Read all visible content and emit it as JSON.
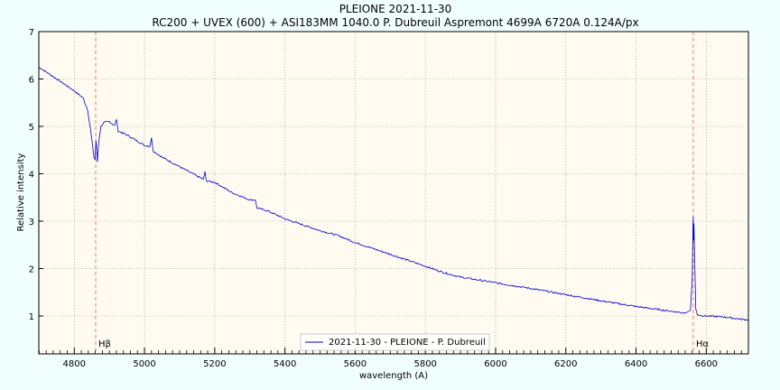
{
  "chart_data": {
    "type": "line",
    "title": "PLEIONE 2021-11-30",
    "subtitle": "RC200 + UVEX (600) + ASI183MM 1040.0 P. Dubreuil Aspremont 4699A 6720A 0.124A/px",
    "xlabel": "wavelength (A)",
    "ylabel": "Relative intensity",
    "xlim": [
      4699,
      6720
    ],
    "ylim": [
      0.2,
      7
    ],
    "xticks": [
      4800,
      5000,
      5200,
      5400,
      5600,
      5800,
      6000,
      6200,
      6400,
      6600
    ],
    "yticks": [
      1,
      2,
      3,
      4,
      5,
      6,
      7
    ],
    "grid": true,
    "legend_position": "bottom-center",
    "series": [
      {
        "name": "2021-11-30 - PLEIONE - P. Dubreuil",
        "color": "#0000cc",
        "anchors": [
          [
            4699,
            6.25
          ],
          [
            4720,
            6.15
          ],
          [
            4760,
            5.95
          ],
          [
            4800,
            5.75
          ],
          [
            4825,
            5.6
          ],
          [
            4838,
            5.35
          ],
          [
            4846,
            4.95
          ],
          [
            4852,
            4.6
          ],
          [
            4856,
            4.35
          ],
          [
            4859,
            4.3
          ],
          [
            4862,
            4.7
          ],
          [
            4866,
            4.25
          ],
          [
            4870,
            4.7
          ],
          [
            4876,
            5.0
          ],
          [
            4885,
            5.08
          ],
          [
            4900,
            5.1
          ],
          [
            4915,
            5.02
          ],
          [
            4920,
            5.15
          ],
          [
            4925,
            4.9
          ],
          [
            4950,
            4.82
          ],
          [
            5000,
            4.6
          ],
          [
            5015,
            4.58
          ],
          [
            5020,
            4.75
          ],
          [
            5025,
            4.48
          ],
          [
            5050,
            4.35
          ],
          [
            5100,
            4.15
          ],
          [
            5150,
            3.95
          ],
          [
            5168,
            3.88
          ],
          [
            5172,
            4.05
          ],
          [
            5176,
            3.85
          ],
          [
            5200,
            3.82
          ],
          [
            5250,
            3.6
          ],
          [
            5300,
            3.45
          ],
          [
            5316,
            3.45
          ],
          [
            5320,
            3.28
          ],
          [
            5350,
            3.22
          ],
          [
            5400,
            3.05
          ],
          [
            5500,
            2.8
          ],
          [
            5550,
            2.7
          ],
          [
            5600,
            2.55
          ],
          [
            5700,
            2.3
          ],
          [
            5800,
            2.05
          ],
          [
            5850,
            1.92
          ],
          [
            5900,
            1.82
          ],
          [
            6000,
            1.7
          ],
          [
            6100,
            1.58
          ],
          [
            6200,
            1.45
          ],
          [
            6300,
            1.32
          ],
          [
            6400,
            1.2
          ],
          [
            6500,
            1.1
          ],
          [
            6540,
            1.06
          ],
          [
            6555,
            1.12
          ],
          [
            6560,
            1.8
          ],
          [
            6562,
            2.9
          ],
          [
            6563,
            3.1
          ],
          [
            6564,
            2.6
          ],
          [
            6565,
            2.95
          ],
          [
            6567,
            2.2
          ],
          [
            6570,
            1.15
          ],
          [
            6575,
            1.02
          ],
          [
            6600,
            1.0
          ],
          [
            6650,
            0.98
          ],
          [
            6700,
            0.93
          ],
          [
            6720,
            0.92
          ]
        ]
      }
    ],
    "annotations": [
      {
        "label": "Hβ",
        "x": 4861
      },
      {
        "label": "Hα",
        "x": 6563
      }
    ]
  }
}
